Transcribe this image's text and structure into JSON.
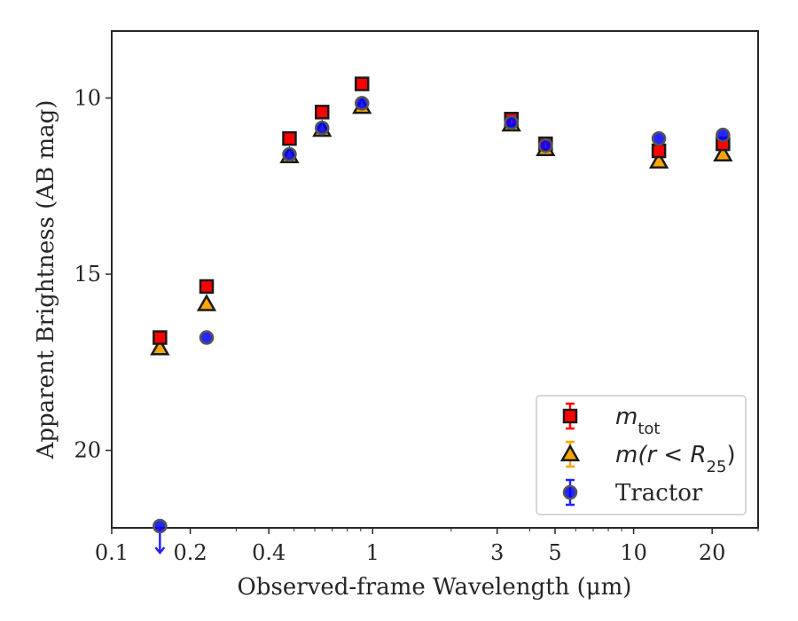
{
  "chart_data": {
    "type": "scatter",
    "title": "",
    "xlabel": "Observed-frame Wavelength (μm)",
    "ylabel": "Apparent Brightness (AB mag)",
    "xscale": "log",
    "xlim": [
      0.1,
      30
    ],
    "ylim": [
      22.2,
      8.1
    ],
    "y_inverted": true,
    "grid": false,
    "legend_position": "lower-right",
    "x_ticks": [
      0.1,
      0.2,
      0.4,
      1,
      3,
      5,
      10,
      20
    ],
    "x_tick_labels": [
      "0.1",
      "0.2",
      "0.4",
      "1",
      "3",
      "5",
      "10",
      "20"
    ],
    "y_ticks": [
      10,
      15,
      20
    ],
    "y_tick_labels": [
      "10",
      "15",
      "20"
    ],
    "legend": [
      {
        "key": "mtot",
        "label_base": "m",
        "label_sub": "tot",
        "label_suffix": ""
      },
      {
        "key": "mr25",
        "label_base": "m(r < R",
        "label_sub": "25",
        "label_suffix": ")"
      },
      {
        "key": "tractor",
        "label_base": "Tractor",
        "label_sub": "",
        "label_suffix": ""
      }
    ],
    "series": [
      {
        "name": "m_tot",
        "marker": "square",
        "color": "#ff0000",
        "errorbar_color": "#ff0000",
        "edge_color": "#1a1a1a",
        "points": [
          {
            "x": 0.153,
            "y": 16.8
          },
          {
            "x": 0.231,
            "y": 15.35
          },
          {
            "x": 0.48,
            "y": 11.15
          },
          {
            "x": 0.64,
            "y": 10.4
          },
          {
            "x": 0.91,
            "y": 9.6
          },
          {
            "x": 3.4,
            "y": 10.6
          },
          {
            "x": 4.6,
            "y": 11.3
          },
          {
            "x": 12.5,
            "y": 11.5
          },
          {
            "x": 22,
            "y": 11.3
          }
        ]
      },
      {
        "name": "m(r < R25)",
        "marker": "triangle",
        "color": "#ffa500",
        "errorbar_color": "#ffa500",
        "edge_color": "#1a1a1a",
        "points": [
          {
            "x": 0.153,
            "y": 17.1
          },
          {
            "x": 0.231,
            "y": 15.85
          },
          {
            "x": 0.48,
            "y": 11.65
          },
          {
            "x": 0.64,
            "y": 10.9
          },
          {
            "x": 0.91,
            "y": 10.25
          },
          {
            "x": 3.4,
            "y": 10.75
          },
          {
            "x": 4.6,
            "y": 11.45
          },
          {
            "x": 12.5,
            "y": 11.8
          },
          {
            "x": 22,
            "y": 11.6
          }
        ]
      },
      {
        "name": "Tractor",
        "marker": "circle",
        "color": "#0000ff",
        "errorbar_color": "#2222ff",
        "edge_color": "#555555",
        "points": [
          {
            "x": 0.153,
            "y": 22.15,
            "upper_limit": true
          },
          {
            "x": 0.231,
            "y": 16.8
          },
          {
            "x": 0.48,
            "y": 11.6
          },
          {
            "x": 0.64,
            "y": 10.85
          },
          {
            "x": 0.91,
            "y": 10.15
          },
          {
            "x": 3.4,
            "y": 10.7
          },
          {
            "x": 4.6,
            "y": 11.35
          },
          {
            "x": 12.5,
            "y": 11.15
          },
          {
            "x": 22,
            "y": 11.05
          }
        ]
      }
    ]
  }
}
